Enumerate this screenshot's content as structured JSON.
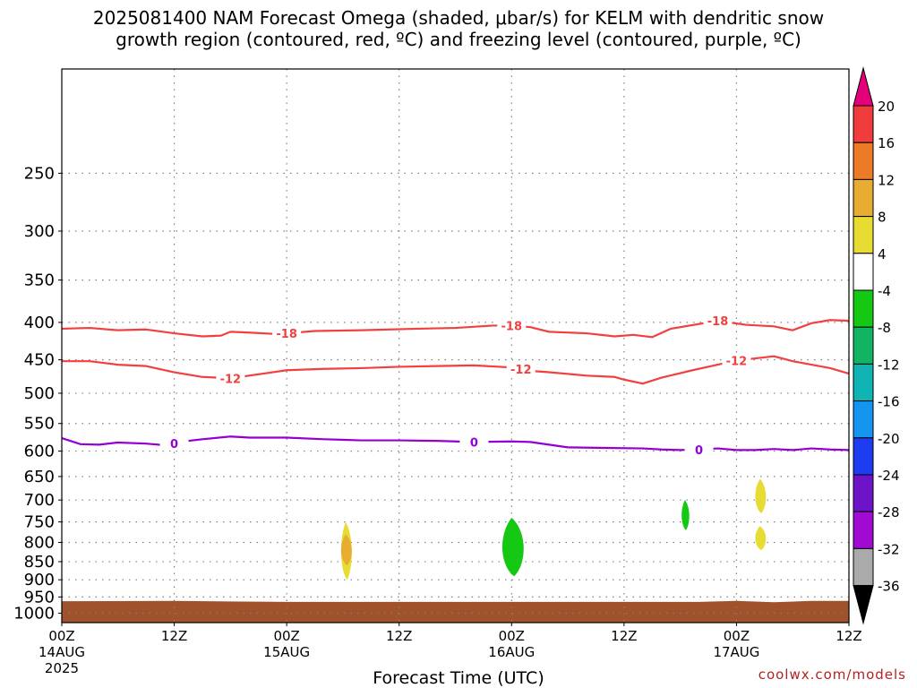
{
  "title": {
    "line1": "2025081400 NAM Forecast Omega (shaded, μbar/s) for KELM with dendritic snow",
    "line2": "growth region (contoured, red, ºC) and freezing level (contoured, purple, ºC)"
  },
  "credit": "coolwx.com/models",
  "colors": {
    "ground": "#a0522d",
    "dendritic_contour": "#f04040",
    "freezing_contour": "#9400d3",
    "grid": "#808080"
  },
  "chart_data": {
    "type": "heatmap",
    "xlabel": "Forecast Time (UTC)",
    "ylabel": "",
    "x_range_hours": [
      0,
      84
    ],
    "y_range_hPa": [
      180,
      1030
    ],
    "y_scale": "log",
    "grid": true,
    "x_ticks": [
      {
        "hour": 0,
        "line1": "00Z",
        "line2": "14AUG",
        "line3": "2025"
      },
      {
        "hour": 12,
        "line1": "12Z",
        "line2": "",
        "line3": ""
      },
      {
        "hour": 24,
        "line1": "00Z",
        "line2": "15AUG",
        "line3": ""
      },
      {
        "hour": 36,
        "line1": "12Z",
        "line2": "",
        "line3": ""
      },
      {
        "hour": 48,
        "line1": "00Z",
        "line2": "16AUG",
        "line3": ""
      },
      {
        "hour": 60,
        "line1": "12Z",
        "line2": "",
        "line3": ""
      },
      {
        "hour": 72,
        "line1": "00Z",
        "line2": "17AUG",
        "line3": ""
      },
      {
        "hour": 84,
        "line1": "12Z",
        "line2": "",
        "line3": ""
      }
    ],
    "y_ticks": [
      "250",
      "300",
      "350",
      "400",
      "450",
      "500",
      "550",
      "600",
      "650",
      "700",
      "750",
      "800",
      "850",
      "900",
      "950",
      "1000"
    ],
    "colorbar": {
      "labels": [
        "20",
        "16",
        "12",
        "8",
        "4",
        "-4",
        "-8",
        "-12",
        "-16",
        "-20",
        "-24",
        "-28",
        "-32",
        "-36"
      ],
      "colors": [
        "#e3007a",
        "#f03c3c",
        "#ec7a28",
        "#e8ac30",
        "#e6dc32",
        "#ffffff",
        "#14c814",
        "#12b464",
        "#10b4b4",
        "#1496f0",
        "#1e3cf0",
        "#6e14c8",
        "#a00ad2",
        "#aaaaaa",
        "#000000"
      ]
    },
    "contours": [
      {
        "label": "-18",
        "color": "#f04040",
        "points": [
          [
            0,
            408
          ],
          [
            3,
            407
          ],
          [
            6,
            410
          ],
          [
            9,
            409
          ],
          [
            12,
            414
          ],
          [
            15,
            418
          ],
          [
            17,
            417
          ],
          [
            18,
            412
          ],
          [
            20,
            413
          ],
          [
            23,
            415
          ],
          [
            27,
            411
          ],
          [
            32,
            410
          ],
          [
            38,
            408
          ],
          [
            42,
            407
          ],
          [
            46,
            404
          ],
          [
            48,
            404
          ],
          [
            50,
            406
          ],
          [
            52,
            412
          ],
          [
            56,
            414
          ],
          [
            59,
            418
          ],
          [
            61,
            416
          ],
          [
            63,
            419
          ],
          [
            65,
            408
          ],
          [
            68,
            402
          ],
          [
            70,
            398
          ],
          [
            73,
            403
          ],
          [
            76,
            405
          ],
          [
            78,
            410
          ],
          [
            80,
            401
          ],
          [
            82,
            397
          ],
          [
            84,
            398
          ]
        ],
        "label_hours": [
          24,
          48,
          70
        ]
      },
      {
        "label": "-12",
        "color": "#f04040",
        "points": [
          [
            0,
            452
          ],
          [
            3,
            452
          ],
          [
            6,
            457
          ],
          [
            9,
            459
          ],
          [
            12,
            468
          ],
          [
            15,
            475
          ],
          [
            18,
            477
          ],
          [
            21,
            471
          ],
          [
            24,
            465
          ],
          [
            28,
            463
          ],
          [
            32,
            462
          ],
          [
            36,
            460
          ],
          [
            40,
            459
          ],
          [
            44,
            458
          ],
          [
            48,
            461
          ],
          [
            50,
            466
          ],
          [
            52,
            468
          ],
          [
            56,
            473
          ],
          [
            59,
            475
          ],
          [
            60,
            479
          ],
          [
            62,
            485
          ],
          [
            64,
            476
          ],
          [
            67,
            466
          ],
          [
            70,
            457
          ],
          [
            72,
            451
          ],
          [
            74,
            448
          ],
          [
            76,
            445
          ],
          [
            78,
            452
          ],
          [
            80,
            457
          ],
          [
            82,
            462
          ],
          [
            84,
            470
          ]
        ],
        "label_hours": [
          18,
          49,
          72
        ]
      },
      {
        "label": "0",
        "color": "#9400d3",
        "points": [
          [
            0,
            576
          ],
          [
            2,
            587
          ],
          [
            4,
            588
          ],
          [
            6,
            584
          ],
          [
            9,
            586
          ],
          [
            11,
            589
          ],
          [
            13,
            582
          ],
          [
            15,
            578
          ],
          [
            18,
            573
          ],
          [
            20,
            575
          ],
          [
            24,
            575
          ],
          [
            28,
            578
          ],
          [
            32,
            580
          ],
          [
            36,
            580
          ],
          [
            40,
            581
          ],
          [
            44,
            583
          ],
          [
            48,
            582
          ],
          [
            50,
            583
          ],
          [
            52,
            588
          ],
          [
            54,
            593
          ],
          [
            58,
            594
          ],
          [
            62,
            595
          ],
          [
            64,
            597
          ],
          [
            66,
            598
          ],
          [
            68,
            597
          ],
          [
            70,
            595
          ],
          [
            72,
            598
          ],
          [
            74,
            598
          ],
          [
            76,
            596
          ],
          [
            78,
            598
          ],
          [
            80,
            595
          ],
          [
            82,
            597
          ],
          [
            84,
            598
          ]
        ],
        "label_hours": [
          12,
          44,
          68
        ]
      }
    ],
    "omega_regions": [
      {
        "value": "4 to 8",
        "color": "#e6dc32",
        "center_hour": 30.3,
        "top_hPa": 750,
        "bottom_hPa": 900
      },
      {
        "value": "8 to 12",
        "color": "#e8ac30",
        "center_hour": 30.3,
        "top_hPa": 780,
        "bottom_hPa": 860
      },
      {
        "value": "-4 to -8",
        "color": "#14c814",
        "center_hour": 48,
        "top_hPa": 740,
        "bottom_hPa": 890
      },
      {
        "value": "-4 to -8",
        "color": "#14c814",
        "center_hour": 66.5,
        "top_hPa": 700,
        "bottom_hPa": 770
      },
      {
        "value": "4 to 8",
        "color": "#e6dc32",
        "center_hour": 74.5,
        "top_hPa": 655,
        "bottom_hPa": 730
      },
      {
        "value": "4 to 8",
        "color": "#e6dc32",
        "center_hour": 74.5,
        "top_hPa": 760,
        "bottom_hPa": 820
      }
    ],
    "ground_pressure_hPa": [
      {
        "hour": 0,
        "hPa": 963
      },
      {
        "hour": 12,
        "hPa": 962
      },
      {
        "hour": 24,
        "hPa": 965
      },
      {
        "hour": 48,
        "hPa": 965
      },
      {
        "hour": 68,
        "hPa": 965
      },
      {
        "hour": 72,
        "hPa": 962
      },
      {
        "hour": 76,
        "hPa": 966
      },
      {
        "hour": 80,
        "hPa": 962
      },
      {
        "hour": 84,
        "hPa": 962
      }
    ]
  }
}
